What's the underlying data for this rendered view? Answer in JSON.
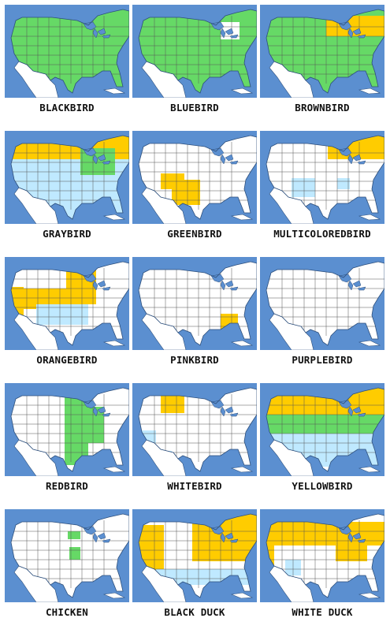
{
  "colors": {
    "ocean": "#5b8fd0",
    "land": "#ffffff",
    "green": "#66d966",
    "yellow": "#ffcc00",
    "lightblue": "#bfe9ff",
    "border": "#555555",
    "coast": "#2d4f7c"
  },
  "maps": [
    {
      "label": "BLACKBIRD"
    },
    {
      "label": "BLUEBIRD"
    },
    {
      "label": "BROWNBIRD"
    },
    {
      "label": "GRAYBIRD"
    },
    {
      "label": "GREENBIRD"
    },
    {
      "label": "MULTICOLOREDBIRD"
    },
    {
      "label": "ORANGEBIRD"
    },
    {
      "label": "PINKBIRD"
    },
    {
      "label": "PURPLEBIRD"
    },
    {
      "label": "REDBIRD"
    },
    {
      "label": "WHITEBIRD"
    },
    {
      "label": "YELLOWBIRD"
    },
    {
      "label": "CHICKEN"
    },
    {
      "label": "BLACK DUCK"
    },
    {
      "label": "WHITE DUCK"
    }
  ]
}
